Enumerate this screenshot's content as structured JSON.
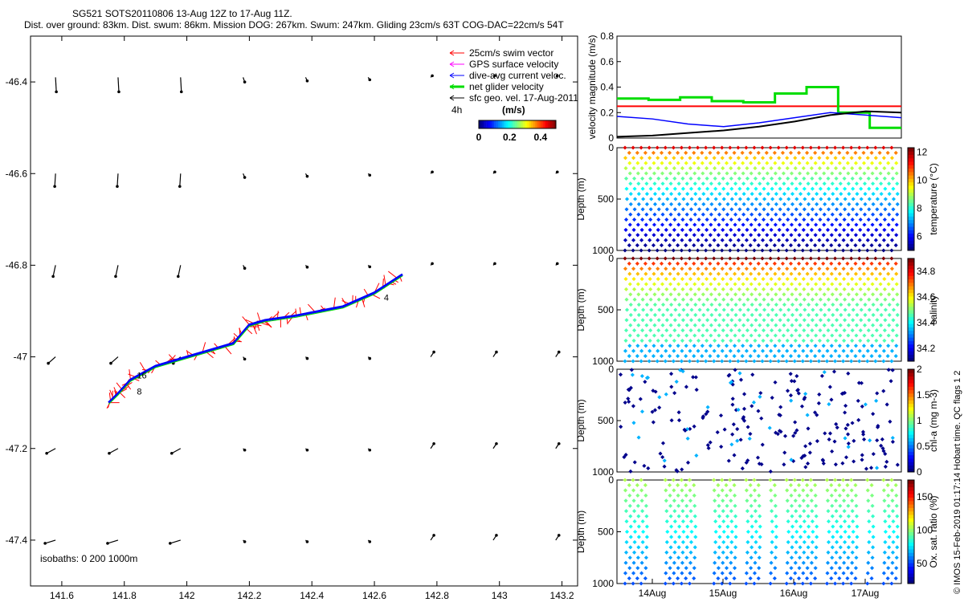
{
  "title": {
    "line1": "SG521 SOTS20110806 13-Aug 12Z to 17-Aug 11Z.",
    "line2": "Dist. over ground: 83km. Dist. swum: 86km. Mission DOG: 267km. Swum: 247km. Gliding 23cm/s 63T COG-DAC=22cm/s 54T"
  },
  "copyright": "© IMOS 15-Feb-2019 01:17:14 Hobart time. QC flags 1  2",
  "colors": {
    "swim": "#ff0000",
    "gps": "#ff00ff",
    "dac": "#0000ff",
    "net": "#00dd00",
    "sfc": "#000000",
    "hot": "#800000",
    "cold": "#000090"
  },
  "map": {
    "legend": [
      {
        "label": "25cm/s swim vector",
        "color": "#ff0000",
        "icon": "arrow-left"
      },
      {
        "label": "GPS surface velocity",
        "color": "#ff00ff",
        "icon": "arrow-left"
      },
      {
        "label": "dive-avg current veloc.",
        "color": "#0000ff",
        "icon": "arrow-left"
      },
      {
        "label": "net glider velocity",
        "color": "#00dd00",
        "icon": "arrow-left"
      },
      {
        "label": "sfc geo. vel. 17-Aug-2011",
        "color": "#000000",
        "icon": "arrow-left"
      }
    ],
    "legend_4h": "4h",
    "colorbar": {
      "label": "(m/s)",
      "ticks": [
        "0",
        "0.2",
        "0.4"
      ],
      "min": 0,
      "max": 0.5
    },
    "isobaths": "isobaths: 0    200   1000m",
    "xlim": [
      141.5,
      143.25
    ],
    "ylim": [
      -47.5,
      -46.3
    ],
    "xticks": [
      141.6,
      141.8,
      142,
      142.2,
      142.4,
      142.6,
      142.8,
      143,
      143.2
    ],
    "xtick_labels": [
      "141.6",
      "141.8",
      "142",
      "142.2",
      "142.4",
      "142.6",
      "142.8",
      "143",
      "143.2"
    ],
    "yticks": [
      -46.4,
      -46.6,
      -46.8,
      -47,
      -47.2,
      -47.4
    ],
    "ytick_labels": [
      "-46.4",
      "-46.6",
      "-46.8",
      "-47",
      "-47.2",
      "-47.4"
    ],
    "track_labels": [
      {
        "text": "16",
        "lon": 141.83,
        "lat": -47.04
      },
      {
        "text": "8",
        "lon": 141.83,
        "lat": -47.075
      },
      {
        "text": "4",
        "lon": 142.62,
        "lat": -46.87
      }
    ]
  },
  "velocity_panel": {
    "ylabel": "velocity magnitude (m/s)",
    "yticks": [
      "0",
      "0.2",
      "0.4",
      "0.6",
      "0.8"
    ],
    "ylim": [
      0,
      0.8
    ]
  },
  "panels": [
    {
      "id": "temperature",
      "label": "temperature (°C)",
      "cticks": [
        "6",
        "8",
        "10",
        "12"
      ],
      "cmin": 5,
      "cmax": 12.3,
      "tmin": 5,
      "tmax": 12
    },
    {
      "id": "salinity",
      "label": "salinity",
      "cticks": [
        "34.2",
        "34.4",
        "34.6",
        "34.8"
      ],
      "cmin": 34.1,
      "cmax": 34.9,
      "tmin": 34.25,
      "tmax": 34.85
    },
    {
      "id": "chla",
      "label": "chl-a (mg m-3)",
      "cticks": [
        "0",
        "0.5",
        "1",
        "1.5",
        "2"
      ],
      "cmin": 0,
      "cmax": 2
    },
    {
      "id": "oxygen",
      "label": "Ox. sat. ratio (%)",
      "cticks": [
        "50",
        "100",
        "150"
      ],
      "cmin": 20,
      "cmax": 175
    }
  ],
  "depth_label": "Depth (m)",
  "depth_ticks": [
    "0",
    "500",
    "1000"
  ],
  "date_ticks": [
    "14Aug",
    "15Aug",
    "16Aug",
    "17Aug"
  ],
  "chart_data": [
    {
      "type": "scatter",
      "title": "SG521 SOTS20110806 13-Aug 12Z to 17-Aug 11Z.",
      "xlabel": "",
      "ylabel": "",
      "xlim": [
        141.5,
        143.25
      ],
      "ylim": [
        -47.5,
        -46.3
      ],
      "series": [
        {
          "name": "dive-avg current veloc.",
          "x": [
            141.75,
            141.78,
            141.82,
            141.9,
            142.05,
            142.15,
            142.2,
            142.25,
            142.35,
            142.5,
            142.6,
            142.69
          ],
          "y": [
            -47.1,
            -47.08,
            -47.05,
            -47.02,
            -46.99,
            -46.97,
            -46.93,
            -46.92,
            -46.91,
            -46.89,
            -46.86,
            -46.82
          ]
        }
      ]
    },
    {
      "type": "line",
      "ylabel": "velocity magnitude (m/s)",
      "ylim": [
        0,
        0.8
      ],
      "x": [
        "13.5",
        "14.0",
        "14.5",
        "15.0",
        "15.5",
        "16.0",
        "16.5",
        "17.0",
        "17.5"
      ],
      "series": [
        {
          "name": "25cm/s swim vector",
          "values": [
            0.25,
            0.25,
            0.25,
            0.25,
            0.25,
            0.25,
            0.25,
            0.25,
            0.25
          ]
        },
        {
          "name": "net glider velocity",
          "values": [
            0.31,
            0.3,
            0.32,
            0.29,
            0.28,
            0.35,
            0.4,
            0.2,
            0.08
          ]
        },
        {
          "name": "dive-avg current veloc.",
          "values": [
            0.17,
            0.15,
            0.11,
            0.09,
            0.12,
            0.16,
            0.2,
            0.18,
            0.16
          ]
        },
        {
          "name": "sfc geo. vel. 17-Aug-2011",
          "values": [
            0.01,
            0.02,
            0.04,
            0.06,
            0.09,
            0.13,
            0.18,
            0.21,
            0.2
          ]
        }
      ]
    },
    {
      "type": "scatter",
      "ylabel": "Depth (m)",
      "colorbar": "temperature (°C)",
      "ylim": [
        1000,
        0
      ],
      "x": [
        "14Aug",
        "15Aug",
        "16Aug",
        "17Aug"
      ]
    },
    {
      "type": "scatter",
      "ylabel": "Depth (m)",
      "colorbar": "salinity",
      "ylim": [
        1000,
        0
      ],
      "x": [
        "14Aug",
        "15Aug",
        "16Aug",
        "17Aug"
      ]
    },
    {
      "type": "scatter",
      "ylabel": "Depth (m)",
      "colorbar": "chl-a (mg m-3)",
      "ylim": [
        1000,
        0
      ],
      "x": [
        "14Aug",
        "15Aug",
        "16Aug",
        "17Aug"
      ]
    },
    {
      "type": "scatter",
      "ylabel": "Depth (m)",
      "colorbar": "Ox. sat. ratio (%)",
      "ylim": [
        1000,
        0
      ],
      "x": [
        "14Aug",
        "15Aug",
        "16Aug",
        "17Aug"
      ]
    }
  ]
}
